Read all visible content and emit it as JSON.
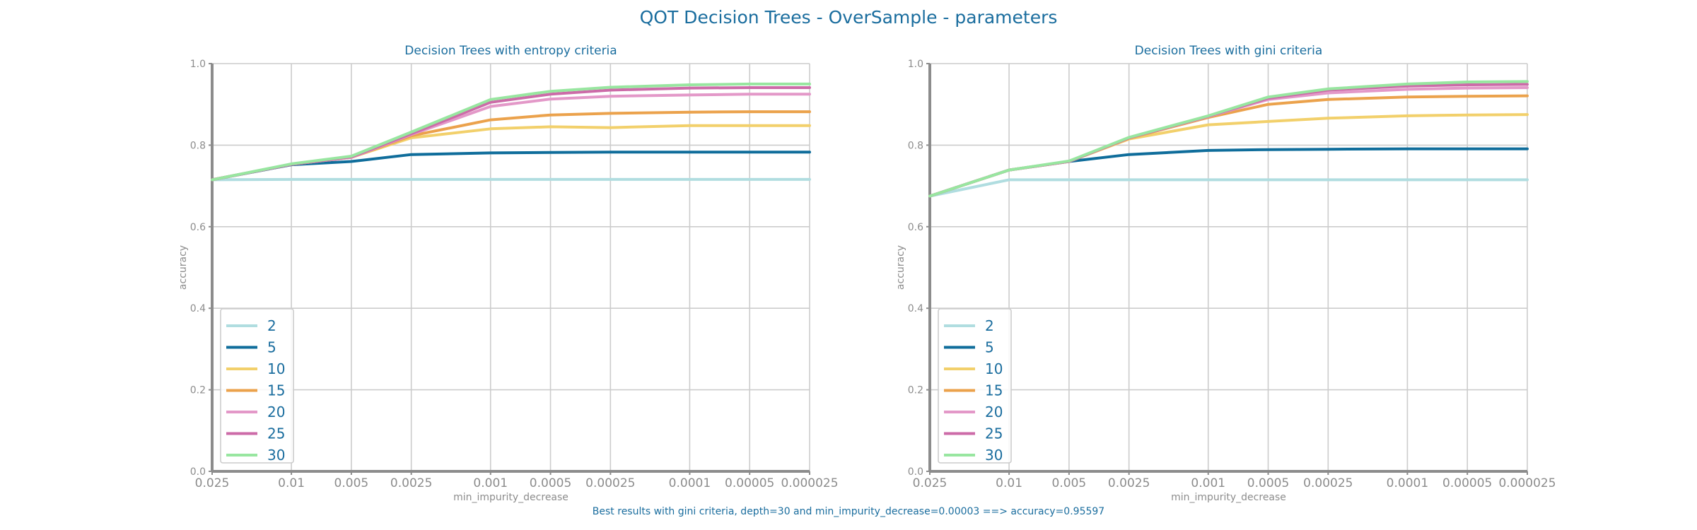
{
  "figure": {
    "title": "QOT Decision Trees - OverSample - parameters",
    "footnote": "Best results with gini criteria, depth=30 and min_impurity_decrease=0.00003 ==> accuracy=0.95597"
  },
  "colors": {
    "2": "#b0dde0",
    "5": "#0f6d9b",
    "10": "#f2d06b",
    "15": "#eba24c",
    "20": "#e398c8",
    "25": "#cc6ba8",
    "30": "#98e6a0",
    "title": "#1a6d9e",
    "axis": "#8c8c8c",
    "grid": "#cccccc"
  },
  "chart_data": [
    {
      "type": "line",
      "title": "Decision Trees with entropy criteria",
      "xlabel": "min_impurity_decrease",
      "ylabel": "accuracy",
      "ylim": [
        0,
        1
      ],
      "y_ticks": [
        "0.0",
        "0.2",
        "0.4",
        "0.6",
        "0.8",
        "1.0"
      ],
      "x_scale": "log, inverted",
      "x_tick_labels": [
        "0.025",
        "0.01",
        "0.005",
        "0.0025",
        "0.001",
        "0.0005",
        "0.00025",
        "0.0001",
        "0.00005",
        "0.000025"
      ],
      "x": [
        0.025,
        0.01,
        0.005,
        0.0025,
        0.001,
        0.0005,
        0.00025,
        0.0001,
        5e-05,
        2.5e-05
      ],
      "grid": true,
      "legend_position": "lower-left",
      "series": [
        {
          "name": "2",
          "values": [
            0.715,
            0.716,
            0.716,
            0.716,
            0.716,
            0.716,
            0.716,
            0.716,
            0.716,
            0.716
          ]
        },
        {
          "name": "5",
          "values": [
            0.715,
            0.752,
            0.76,
            0.777,
            0.781,
            0.782,
            0.783,
            0.783,
            0.783,
            0.783
          ]
        },
        {
          "name": "10",
          "values": [
            0.715,
            0.753,
            0.77,
            0.818,
            0.84,
            0.845,
            0.843,
            0.848,
            0.848,
            0.848
          ]
        },
        {
          "name": "15",
          "values": [
            0.715,
            0.753,
            0.77,
            0.823,
            0.862,
            0.874,
            0.878,
            0.881,
            0.882,
            0.882
          ]
        },
        {
          "name": "20",
          "values": [
            0.715,
            0.753,
            0.77,
            0.826,
            0.895,
            0.913,
            0.92,
            0.923,
            0.925,
            0.925
          ]
        },
        {
          "name": "25",
          "values": [
            0.715,
            0.753,
            0.771,
            0.828,
            0.905,
            0.925,
            0.935,
            0.94,
            0.941,
            0.941
          ]
        },
        {
          "name": "30",
          "values": [
            0.715,
            0.754,
            0.773,
            0.832,
            0.912,
            0.932,
            0.942,
            0.948,
            0.95,
            0.95
          ]
        }
      ]
    },
    {
      "type": "line",
      "title": "Decision Trees with gini criteria",
      "xlabel": "min_impurity_decrease",
      "ylabel": "accuracy",
      "ylim": [
        0,
        1
      ],
      "y_ticks": [
        "0.0",
        "0.2",
        "0.4",
        "0.6",
        "0.8",
        "1.0"
      ],
      "x_scale": "log, inverted",
      "x_tick_labels": [
        "0.025",
        "0.01",
        "0.005",
        "0.0025",
        "0.001",
        "0.0005",
        "0.00025",
        "0.0001",
        "0.00005",
        "0.000025"
      ],
      "x": [
        0.025,
        0.01,
        0.005,
        0.0025,
        0.001,
        0.0005,
        0.00025,
        0.0001,
        5e-05,
        2.5e-05
      ],
      "grid": true,
      "legend_position": "lower-left",
      "series": [
        {
          "name": "2",
          "values": [
            0.675,
            0.715,
            0.715,
            0.715,
            0.715,
            0.715,
            0.715,
            0.715,
            0.715,
            0.715
          ]
        },
        {
          "name": "5",
          "values": [
            0.675,
            0.739,
            0.76,
            0.777,
            0.787,
            0.789,
            0.79,
            0.791,
            0.791,
            0.791
          ]
        },
        {
          "name": "10",
          "values": [
            0.675,
            0.739,
            0.76,
            0.815,
            0.85,
            0.858,
            0.866,
            0.872,
            0.874,
            0.875
          ]
        },
        {
          "name": "15",
          "values": [
            0.675,
            0.739,
            0.76,
            0.817,
            0.868,
            0.9,
            0.912,
            0.918,
            0.92,
            0.921
          ]
        },
        {
          "name": "20",
          "values": [
            0.675,
            0.739,
            0.76,
            0.818,
            0.87,
            0.912,
            0.928,
            0.937,
            0.94,
            0.941
          ]
        },
        {
          "name": "25",
          "values": [
            0.675,
            0.739,
            0.76,
            0.818,
            0.871,
            0.915,
            0.935,
            0.945,
            0.948,
            0.949
          ]
        },
        {
          "name": "30",
          "values": [
            0.675,
            0.739,
            0.761,
            0.819,
            0.872,
            0.918,
            0.938,
            0.95,
            0.955,
            0.956
          ]
        }
      ]
    }
  ]
}
